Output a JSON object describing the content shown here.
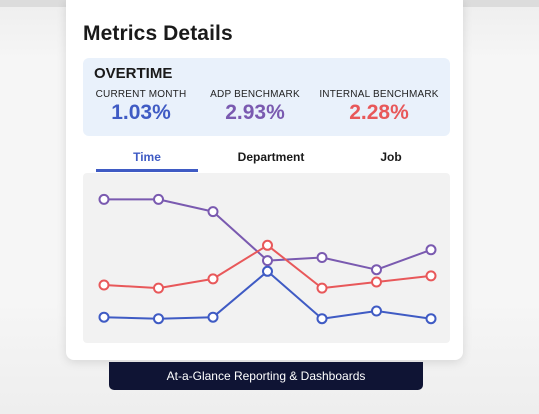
{
  "card": {
    "title": "Metrics Details"
  },
  "overtime": {
    "heading": "OVERTIME",
    "metrics": [
      {
        "label": "CURRENT MONTH",
        "value": "1.03%",
        "color": "#3f5bc4"
      },
      {
        "label": "ADP BENCHMARK",
        "value": "2.93%",
        "color": "#7a5ab0"
      },
      {
        "label": "INTERNAL BENCHMARK",
        "value": "2.28%",
        "color": "#e8585a"
      }
    ]
  },
  "tabs": [
    {
      "label": "Time",
      "active": true
    },
    {
      "label": "Department",
      "active": false
    },
    {
      "label": "Job",
      "active": false
    }
  ],
  "banner": {
    "text": "At-a-Glance Reporting & Dashboards"
  },
  "chart_data": {
    "type": "line",
    "grid": false,
    "legend": "none",
    "ylim": [
      0,
      100
    ],
    "x": [
      1,
      2,
      3,
      4,
      5,
      6,
      7
    ],
    "series": [
      {
        "color": "#7a5ab0",
        "values": [
          88,
          88,
          80,
          48,
          50,
          42,
          55
        ]
      },
      {
        "color": "#e8585a",
        "values": [
          32,
          30,
          36,
          58,
          30,
          34,
          38
        ]
      },
      {
        "color": "#3f5bc4",
        "values": [
          11,
          10,
          11,
          41,
          10,
          15,
          10
        ]
      }
    ]
  }
}
